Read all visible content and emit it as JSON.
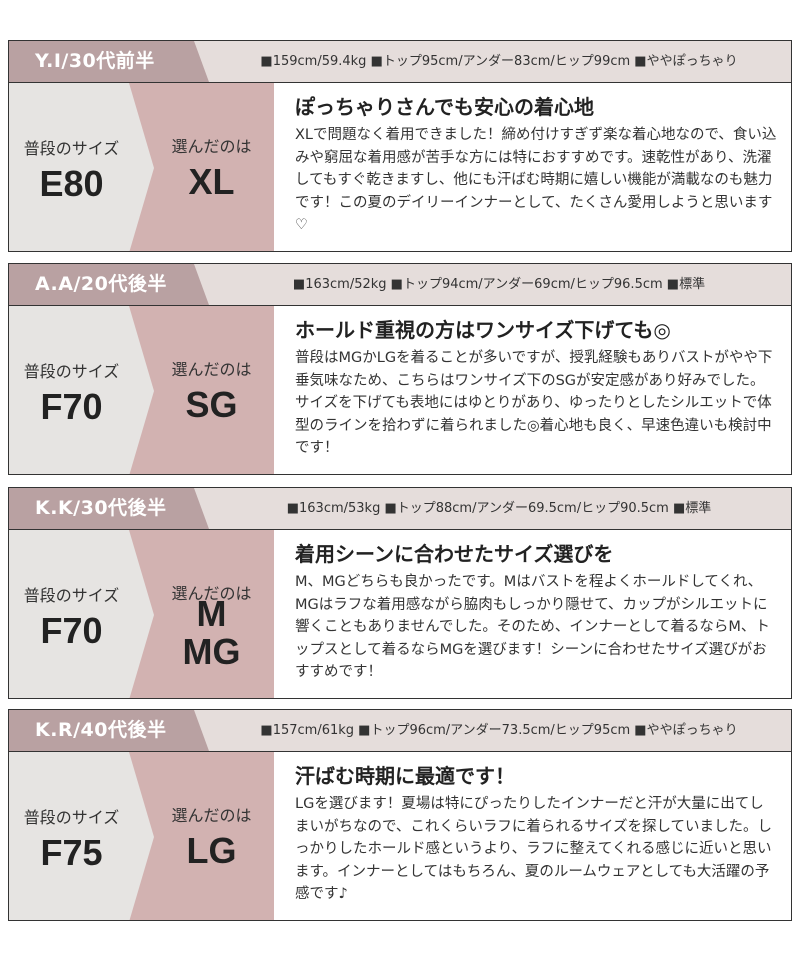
{
  "reviews": [
    {
      "name": "Y.I/30代前半",
      "stats": "■159cm/59.4kg ■トップ95cm/アンダー83cm/ヒップ99cm ■ややぽっちゃり",
      "usual_label": "普段のサイズ",
      "usual_size": "E80",
      "chosen_label": "選んだのは",
      "chosen_size": "XL",
      "title": "ぽっちゃりさんでも安心の着心地",
      "text": "XLで問題なく着用できました！締め付けすぎず楽な着心地なので、食い込みや窮屈な着用感が苦手な方には特におすすめです。速乾性があり、洗濯してもすぐ乾きますし、他にも汗ばむ時期に嬉しい機能が満載なのも魅力です！この夏のデイリーインナーとして、たくさん愛用しようと思います♡"
    },
    {
      "name": "A.A/20代後半",
      "stats": "■163cm/52kg ■トップ94cm/アンダー69cm/ヒップ96.5cm ■標準",
      "usual_label": "普段のサイズ",
      "usual_size": "F70",
      "chosen_label": "選んだのは",
      "chosen_size": "SG",
      "title": "ホールド重視の方はワンサイズ下げても◎",
      "text": "普段はMGかLGを着ることが多いですが、授乳経験もありバストがやや下垂気味なため、こちらはワンサイズ下のSGが安定感があり好みでした。サイズを下げても表地にはゆとりがあり、ゆったりとしたシルエットで体型のラインを拾わずに着られました◎着心地も良く、早速色違いも検討中です！"
    },
    {
      "name": "K.K/30代後半",
      "stats": "■163cm/53kg ■トップ88cm/アンダー69.5cm/ヒップ90.5cm ■標準",
      "usual_label": "普段のサイズ",
      "usual_size": "F70",
      "chosen_label": "選んだのは",
      "chosen_size": "M\nMG",
      "title": "着用シーンに合わせたサイズ選びを",
      "text": "M、MGどちらも良かったです。Mはバストを程よくホールドしてくれ、MGはラフな着用感ながら脇肉もしっかり隠せて、カップがシルエットに響くこともありませんでした。そのため、インナーとして着るならM、トップスとして着るならMGを選びます！シーンに合わせたサイズ選びがおすすめです！"
    },
    {
      "name": "K.R/40代後半",
      "stats": "■157cm/61kg ■トップ96cm/アンダー73.5cm/ヒップ95cm ■ややぽっちゃり",
      "usual_label": "普段のサイズ",
      "usual_size": "F75",
      "chosen_label": "選んだのは",
      "chosen_size": "LG",
      "title": "汗ばむ時期に最適です！",
      "text": "LGを選びます！夏場は特にぴったりしたインナーだと汗が大量に出てしまいがちなので、これくらいラフに着られるサイズを探していました。しっかりしたホールド感というより、ラフに整えてくれる感じに近いと思います。インナーとしてはもちろん、夏のルームウェアとしても大活躍の予感です♪"
    }
  ]
}
